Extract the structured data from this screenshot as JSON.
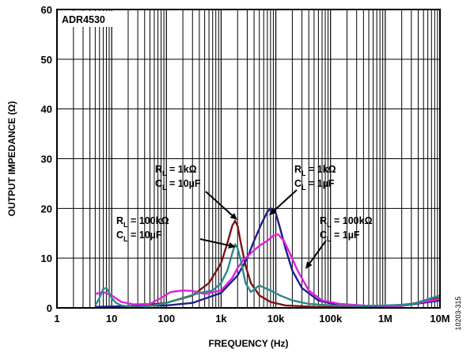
{
  "chart_data": {
    "type": "line",
    "chip_label": "ADR4530",
    "xlabel": "FREQUENCY (Hz)",
    "ylabel": "OUTPUT IMPEDANCE (Ω)",
    "x_scale": "log",
    "xlim": [
      1,
      10000000
    ],
    "ylim": [
      0,
      60
    ],
    "x_ticks": [
      1,
      10,
      100,
      1000,
      10000,
      100000,
      1000000,
      10000000
    ],
    "x_tick_labels": [
      "1",
      "10",
      "100",
      "1k",
      "10k",
      "100k",
      "1M",
      "10M"
    ],
    "y_ticks": [
      0,
      10,
      20,
      30,
      40,
      50,
      60
    ],
    "y_tick_labels": [
      "0",
      "10",
      "20",
      "30",
      "40",
      "50",
      "60"
    ],
    "grid": true,
    "figure_id": "10203-315",
    "annotations": [
      {
        "r": "R",
        "r_sub": "L",
        "r_val": " = 1kΩ",
        "c": "C",
        "c_sub": "L",
        "c_val": " = 10µF"
      },
      {
        "r": "R",
        "r_sub": "L",
        "r_val": " = 1kΩ",
        "c": "C",
        "c_sub": "L",
        "c_val": " = 1µF"
      },
      {
        "r": "R",
        "r_sub": "L",
        "r_val": " = 100kΩ",
        "c": "C",
        "c_sub": "L",
        "c_val": " = 10µF"
      },
      {
        "r": "R",
        "r_sub": "L",
        "r_val": " = 100kΩ",
        "c": "C",
        "c_sub": "L",
        "c_val": " = 1µF"
      }
    ],
    "series": [
      {
        "color": "#7b1414",
        "x": [
          5,
          10,
          30,
          100,
          300,
          600,
          1000,
          1300,
          1600,
          1800,
          2000,
          2300,
          2800,
          3500,
          5000,
          8000,
          15000,
          50000,
          200000,
          1000000,
          3000000,
          10000000
        ],
        "y": [
          0.1,
          0.2,
          0.4,
          1,
          2.5,
          5,
          9,
          13,
          16.5,
          17.5,
          16.5,
          13,
          8.5,
          5,
          2.5,
          1.2,
          0.5,
          0.2,
          0.1,
          0.3,
          0.8,
          2
        ]
      },
      {
        "color": "#1e1e8c",
        "x": [
          5,
          100,
          300,
          1000,
          2000,
          3000,
          4000,
          5500,
          7000,
          8000,
          9000,
          10000,
          12000,
          15000,
          20000,
          30000,
          60000,
          150000,
          500000,
          2000000,
          10000000
        ],
        "y": [
          0.2,
          0.5,
          1,
          3,
          6.5,
          10,
          13.5,
          17,
          19.3,
          20,
          19.8,
          19,
          16,
          12,
          7.5,
          4,
          1.5,
          0.5,
          0.3,
          0.4,
          1.5
        ]
      },
      {
        "color": "#e020e0",
        "x": [
          5,
          7,
          10,
          15,
          25,
          50,
          80,
          120,
          200,
          300,
          500,
          1000,
          1600,
          2000,
          2500,
          3500,
          5000,
          7000,
          9000,
          11000,
          14000,
          18000,
          25000,
          40000,
          70000,
          150000,
          500000,
          2000000,
          10000000
        ],
        "y": [
          2.8,
          3.2,
          2.5,
          1.2,
          0.7,
          0.8,
          2,
          3.2,
          3.5,
          3.4,
          2.8,
          3.5,
          6,
          8,
          9.5,
          11,
          12.5,
          13.5,
          14.5,
          14.8,
          13.5,
          11,
          7.5,
          3.5,
          1.5,
          0.8,
          0.4,
          0.4,
          1.8
        ]
      },
      {
        "color": "#2a8a87",
        "x": [
          5,
          6,
          7,
          8,
          9,
          10,
          12,
          15,
          20,
          30,
          60,
          100,
          200,
          400,
          700,
          1000,
          1300,
          1600,
          1800,
          2000,
          2300,
          2800,
          3500,
          5000,
          8000,
          12000,
          20000,
          40000,
          100000,
          300000,
          1000000,
          3000000,
          10000000
        ],
        "y": [
          0.5,
          2,
          3.8,
          4,
          3,
          2,
          1,
          0.5,
          0.3,
          0.2,
          0.5,
          1,
          2,
          3,
          3.5,
          5,
          7.5,
          11,
          12.8,
          12,
          9.5,
          5,
          3.2,
          4.5,
          3.5,
          2.5,
          1.5,
          0.8,
          0.5,
          0.4,
          0.5,
          0.7,
          2.5
        ]
      }
    ]
  }
}
